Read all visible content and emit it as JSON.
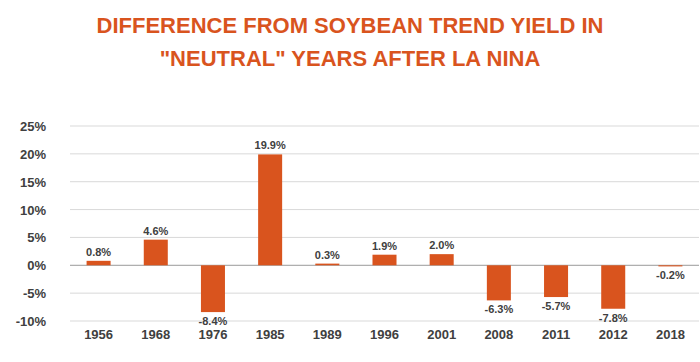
{
  "chart_data": {
    "type": "bar",
    "title": "DIFFERENCE FROM SOYBEAN TREND YIELD IN\n\"NEUTRAL\" YEARS AFTER LA NINA",
    "categories": [
      "1956",
      "1968",
      "1976",
      "1985",
      "1989",
      "1996",
      "2001",
      "2008",
      "2011",
      "2012",
      "2018"
    ],
    "values": [
      0.8,
      4.6,
      -8.4,
      19.9,
      0.3,
      1.9,
      2.0,
      -6.3,
      -5.7,
      -7.8,
      -0.2
    ],
    "value_labels": [
      "0.8%",
      "4.6%",
      "-8.4%",
      "19.9%",
      "0.3%",
      "1.9%",
      "2.0%",
      "-6.3%",
      "-5.7%",
      "-7.8%",
      "-0.2%"
    ],
    "data_labels": true,
    "color": "#d9541e",
    "ylim": [
      -10,
      25
    ],
    "yticks": [
      {
        "value": -10,
        "label": "-10%"
      },
      {
        "value": -5,
        "label": "-5%"
      },
      {
        "value": 0,
        "label": "0%"
      },
      {
        "value": 5,
        "label": "5%"
      },
      {
        "value": 10,
        "label": "10%"
      },
      {
        "value": 15,
        "label": "15%"
      },
      {
        "value": 20,
        "label": "20%"
      },
      {
        "value": 25,
        "label": "25%"
      }
    ],
    "grid": true
  }
}
